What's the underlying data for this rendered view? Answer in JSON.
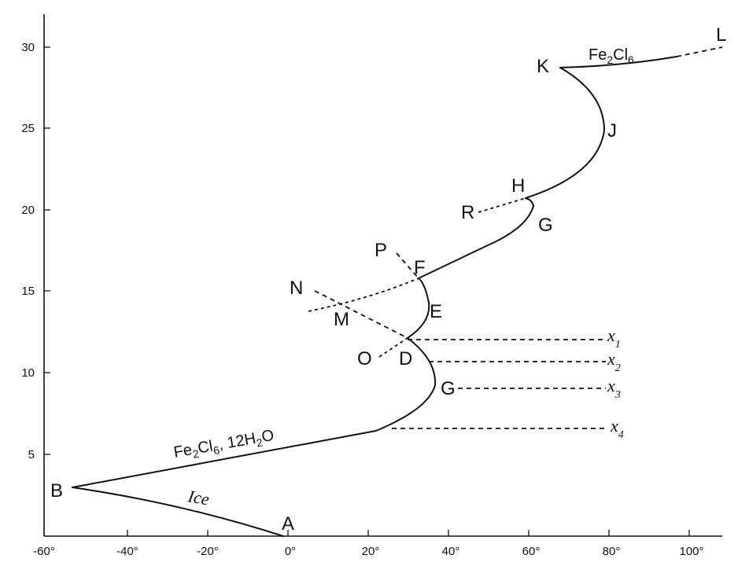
{
  "diagram": {
    "x_axis_ticks": [
      "-60°",
      "-40°",
      "-20°",
      "0°",
      "20°",
      "40°",
      "60°",
      "80°",
      "100°"
    ],
    "y_axis_ticks": [
      "5",
      "10",
      "15",
      "20",
      "25",
      "30"
    ],
    "point_labels": {
      "A": "A",
      "B": "B",
      "D": "D",
      "E": "E",
      "F": "F",
      "G_lower": "G",
      "G_upper": "G",
      "H": "H",
      "J": "J",
      "K": "K",
      "L": "L",
      "M": "M",
      "N": "N",
      "O": "O",
      "P": "P",
      "R": "R"
    },
    "curve_labels": {
      "ice": "Ice",
      "hydrate_12_main": "Fe",
      "hydrate_12_sub1": "2",
      "hydrate_12_mid": "Cl",
      "hydrate_12_sub2": "6",
      "hydrate_12_tail": ", 12H",
      "hydrate_12_sub3": "2",
      "hydrate_12_end": "O",
      "anhydrous_main": "Fe",
      "anhydrous_sub1": "2",
      "anhydrous_mid": "Cl",
      "anhydrous_sub2": "6"
    },
    "tie_line_labels": {
      "x1": "x",
      "x1_sub": "1",
      "x2": "x",
      "x2_sub": "2",
      "x3": "x",
      "x3_sub": "3",
      "x4": "x",
      "x4_sub": "4"
    }
  }
}
